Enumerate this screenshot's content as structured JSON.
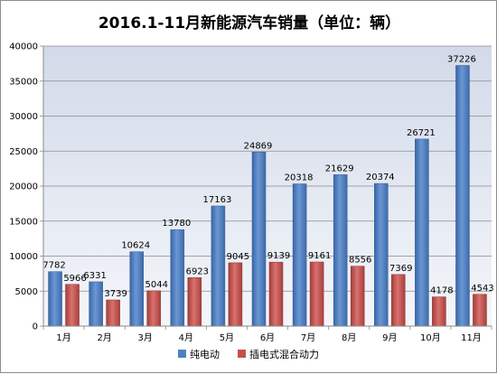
{
  "chart_data": {
    "type": "bar",
    "title": "2016.1-11月新能源汽车销量（单位：辆）",
    "categories": [
      "1月",
      "2月",
      "3月",
      "4月",
      "5月",
      "6月",
      "7月",
      "8月",
      "9月",
      "10月",
      "11月"
    ],
    "series": [
      {
        "name": "纯电动",
        "color": "#4f81bd",
        "values": [
          7782,
          6331,
          10624,
          13780,
          17163,
          24869,
          20318,
          21629,
          20374,
          26721,
          37226
        ]
      },
      {
        "name": "插电式混合动力",
        "color": "#c0504d",
        "values": [
          5966,
          3739,
          5044,
          6923,
          9045,
          9139,
          9161,
          8556,
          7369,
          4178,
          4543
        ]
      }
    ],
    "y_ticks": [
      0,
      5000,
      10000,
      15000,
      20000,
      25000,
      30000,
      35000,
      40000
    ],
    "ylim": [
      0,
      40000
    ],
    "grid": true,
    "legend_position": "bottom",
    "plot_background": "#dde3ee"
  }
}
